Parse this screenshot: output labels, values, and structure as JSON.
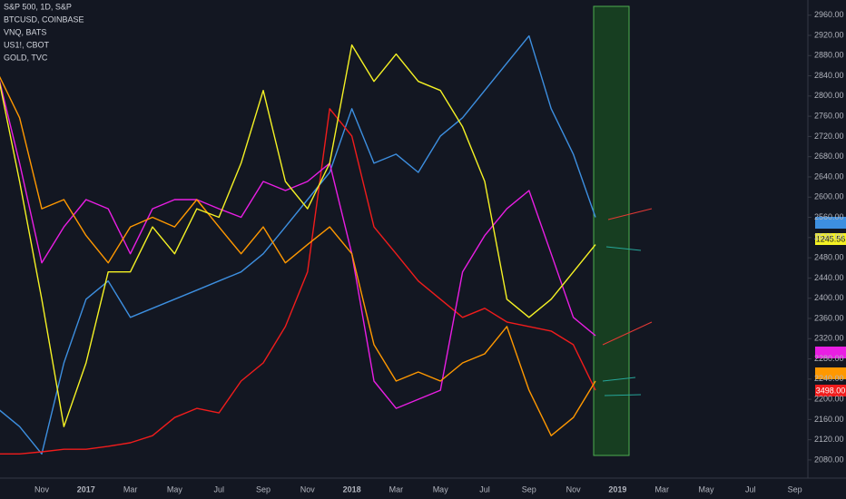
{
  "chart_data": {
    "type": "line",
    "categories": [
      null,
      null,
      "Nov",
      null,
      "2017",
      null,
      "Mar",
      null,
      "May",
      null,
      "Jul",
      null,
      "Sep",
      null,
      "Nov",
      null,
      "2018",
      null,
      "Mar",
      null,
      "May",
      null,
      "Jul",
      null,
      "Sep",
      null,
      "Nov",
      null,
      "2019",
      null,
      "Mar",
      null,
      "May",
      null,
      "Jul",
      null,
      "Sep"
    ],
    "series": [
      {
        "name": "S&P 500, 1D, S&P",
        "color": "#3d8fe0",
        "values": [
          2182,
          2146,
          2092,
          2272,
          2398,
          2434,
          2362,
          2380,
          2398,
          2416,
          2434,
          2452,
          2488,
          2541,
          2595,
          2649,
          2775,
          2667,
          2685,
          2649,
          2721,
          2757,
          2811,
          2865,
          2919,
          2775,
          2685,
          2560,
          null,
          null,
          null,
          null,
          null,
          null,
          null,
          null,
          null
        ]
      },
      {
        "name": "BTCUSD, COINBASE",
        "color": "#f01c1c",
        "values": [
          2092,
          2092,
          2096,
          2101,
          2101,
          2107,
          2114,
          2128,
          2164,
          2182,
          2173,
          2236,
          2272,
          2344,
          2452,
          2775,
          2721,
          2541,
          2488,
          2434,
          2398,
          2362,
          2380,
          2353,
          2344,
          2335,
          2308,
          2218,
          null,
          null,
          null,
          null,
          null,
          null,
          null,
          null,
          null
        ]
      },
      {
        "name": "VNQ, BATS",
        "color": "#e91ee3",
        "values": [
          2847,
          2667,
          2470,
          2541,
          2595,
          2577,
          2488,
          2577,
          2595,
          2595,
          2577,
          2560,
          2631,
          2613,
          2631,
          2667,
          2488,
          2236,
          2182,
          2200,
          2218,
          2452,
          2524,
          2577,
          2613,
          2488,
          2362,
          2326,
          null,
          null,
          null,
          null,
          null,
          null,
          null,
          null,
          null
        ]
      },
      {
        "name": "US1!, CBOT",
        "color": "#ff9800",
        "values": [
          2847,
          2757,
          2577,
          2595,
          2524,
          2470,
          2541,
          2560,
          2541,
          2595,
          2541,
          2488,
          2541,
          2470,
          2506,
          2541,
          2488,
          2308,
          2236,
          2254,
          2236,
          2272,
          2290,
          2344,
          2218,
          2128,
          2164,
          2236,
          null,
          null,
          null,
          null,
          null,
          null,
          null,
          null,
          null
        ]
      },
      {
        "name": "GOLD, TVC",
        "color": "#f5f224",
        "values": [
          2847,
          2631,
          2398,
          2146,
          2272,
          2452,
          2452,
          2541,
          2488,
          2577,
          2560,
          2667,
          2811,
          2631,
          2577,
          2667,
          2901,
          2829,
          2883,
          2829,
          2811,
          2739,
          2631,
          2398,
          2362,
          2398,
          2452,
          2506,
          null,
          null,
          null,
          null,
          null,
          null,
          null,
          null,
          null
        ]
      }
    ],
    "ylim": [
      2044,
      2990
    ],
    "yticks": [
      {
        "value": 2080,
        "label": "2080.00"
      },
      {
        "value": 2120,
        "label": "2120.00"
      },
      {
        "value": 2160,
        "label": "2160.00"
      },
      {
        "value": 2200,
        "label": "2200.00"
      },
      {
        "value": 2240,
        "label": "2240.00"
      },
      {
        "value": 2280,
        "label": "2280.00"
      },
      {
        "value": 2320,
        "label": "2320.00"
      },
      {
        "value": 2360,
        "label": "2360.00"
      },
      {
        "value": 2400,
        "label": "2400.00"
      },
      {
        "value": 2440,
        "label": "2440.00"
      },
      {
        "value": 2480,
        "label": "2480.00"
      },
      {
        "value": 2520,
        "label": "2520.00"
      },
      {
        "value": 2560,
        "label": "2560.00"
      },
      {
        "value": 2600,
        "label": "2600.00"
      },
      {
        "value": 2640,
        "label": "2640.00"
      },
      {
        "value": 2680,
        "label": "2680.00"
      },
      {
        "value": 2720,
        "label": "2720.00"
      },
      {
        "value": 2760,
        "label": "2760.00"
      },
      {
        "value": 2800,
        "label": "2800.00"
      },
      {
        "value": 2840,
        "label": "2840.00"
      },
      {
        "value": 2880,
        "label": "2880.00"
      },
      {
        "value": 2920,
        "label": "2920.00"
      },
      {
        "value": 2960,
        "label": "2960.00"
      }
    ],
    "grid": false,
    "annotations": [
      "1245.56",
      "3498.00"
    ]
  }
}
